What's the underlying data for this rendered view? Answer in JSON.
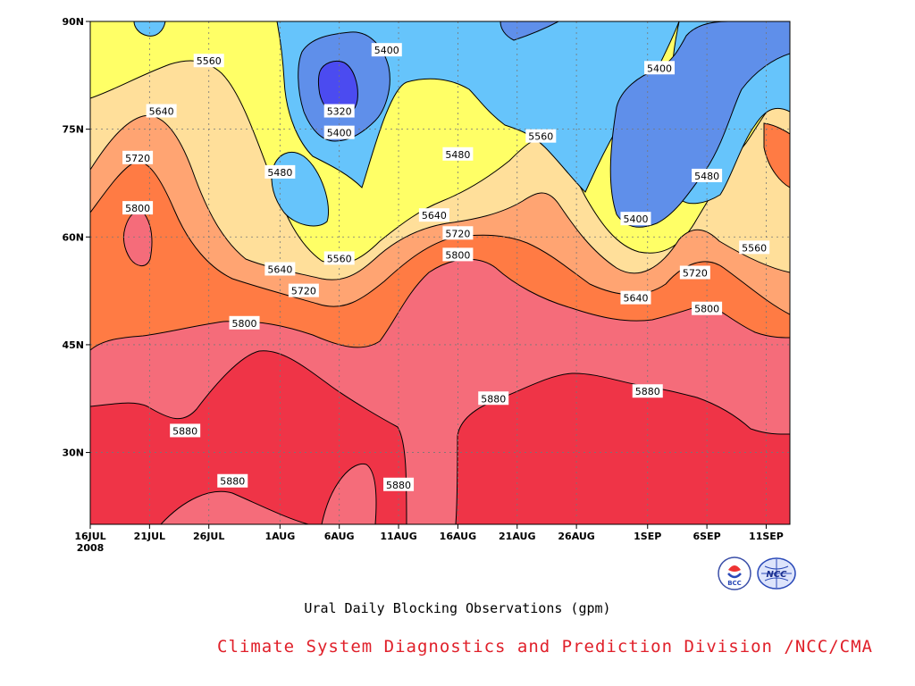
{
  "chart_data": {
    "type": "heatmap",
    "title": "Ural Daily Blocking Observations (gpm)",
    "x_ticks": [
      "16JUL",
      "21JUL",
      "26JUL",
      "1AUG",
      "6AUG",
      "11AUG",
      "16AUG",
      "21AUG",
      "26AUG",
      "1SEP",
      "6SEP",
      "11SEP"
    ],
    "x_year": "2008",
    "y_ticks": [
      "90N",
      "75N",
      "60N",
      "45N",
      "30N"
    ],
    "ylim": [
      20,
      90
    ],
    "xlim": [
      "2008-07-16",
      "2008-09-13"
    ],
    "levels": [
      5320,
      5400,
      5480,
      5560,
      5640,
      5720,
      5800,
      5880
    ],
    "level_colors": [
      "#4b4bf0",
      "#5f8fea",
      "#66c4fb",
      "#ffff66",
      "#ffdf9a",
      "#ffa472",
      "#ff7b44",
      "#f56c7a",
      "#ef3447"
    ],
    "contour_labels": [
      {
        "value": "5560",
        "date": "2008-07-26",
        "lat": 84.5
      },
      {
        "value": "5640",
        "date": "2008-07-22",
        "lat": 77.5
      },
      {
        "value": "5720",
        "date": "2008-07-20",
        "lat": 71.0
      },
      {
        "value": "5800",
        "date": "2008-07-20",
        "lat": 64.0
      },
      {
        "value": "5480",
        "date": "2008-08-01",
        "lat": 69.0
      },
      {
        "value": "5400",
        "date": "2008-08-10",
        "lat": 86.0
      },
      {
        "value": "5320",
        "date": "2008-08-06",
        "lat": 77.5
      },
      {
        "value": "5400",
        "date": "2008-08-06",
        "lat": 74.5
      },
      {
        "value": "5560",
        "date": "2008-08-23",
        "lat": 74.0
      },
      {
        "value": "5480",
        "date": "2008-08-16",
        "lat": 71.5
      },
      {
        "value": "5640",
        "date": "2008-08-14",
        "lat": 63.0
      },
      {
        "value": "5720",
        "date": "2008-08-16",
        "lat": 60.5
      },
      {
        "value": "5800",
        "date": "2008-08-16",
        "lat": 57.5
      },
      {
        "value": "5640",
        "date": "2008-08-01",
        "lat": 55.5
      },
      {
        "value": "5560",
        "date": "2008-08-06",
        "lat": 57.0
      },
      {
        "value": "5720",
        "date": "2008-08-03",
        "lat": 52.5
      },
      {
        "value": "5800",
        "date": "2008-07-29",
        "lat": 48.0
      },
      {
        "value": "5400",
        "date": "2008-09-02",
        "lat": 83.5
      },
      {
        "value": "5400",
        "date": "2008-08-31",
        "lat": 62.5
      },
      {
        "value": "5480",
        "date": "2008-09-06",
        "lat": 68.5
      },
      {
        "value": "5560",
        "date": "2008-09-10",
        "lat": 58.5
      },
      {
        "value": "5720",
        "date": "2008-09-05",
        "lat": 55.0
      },
      {
        "value": "5640",
        "date": "2008-08-31",
        "lat": 51.5
      },
      {
        "value": "5800",
        "date": "2008-09-06",
        "lat": 50.0
      },
      {
        "value": "5880",
        "date": "2008-09-01",
        "lat": 38.5
      },
      {
        "value": "5880",
        "date": "2008-08-19",
        "lat": 37.5
      },
      {
        "value": "5880",
        "date": "2008-07-24",
        "lat": 33.0
      },
      {
        "value": "5880",
        "date": "2008-07-28",
        "lat": 26.0
      },
      {
        "value": "5880",
        "date": "2008-08-11",
        "lat": 25.5
      }
    ]
  },
  "footer": {
    "title": "Ural Daily Blocking Observations (gpm)",
    "credit": "Climate System Diagnostics and Prediction Division /NCC/CMA",
    "logos": [
      {
        "name": "bcc-logo",
        "text": "BCC"
      },
      {
        "name": "ncc-logo",
        "text": "NCC"
      }
    ]
  }
}
